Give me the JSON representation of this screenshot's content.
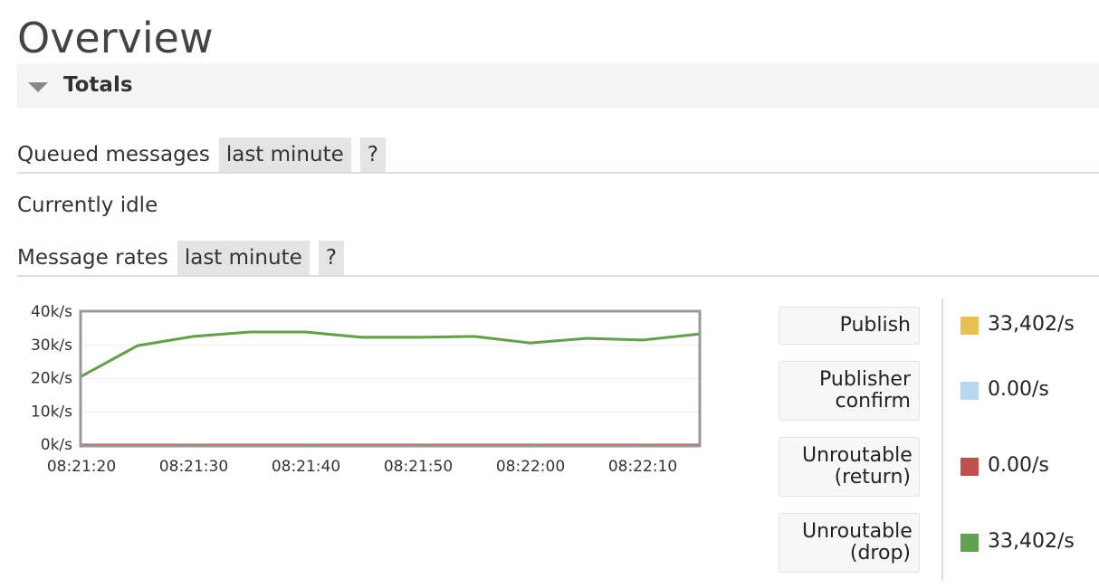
{
  "header": {
    "title": "Overview"
  },
  "totals": {
    "label": "Totals"
  },
  "queued": {
    "label": "Queued messages",
    "range": "last minute",
    "help": "?"
  },
  "idle": "Currently idle",
  "rates": {
    "label": "Message rates",
    "range": "last minute",
    "help": "?"
  },
  "chart_data": {
    "type": "line",
    "x": [
      "08:21:20",
      "08:21:25",
      "08:21:30",
      "08:21:35",
      "08:21:40",
      "08:21:45",
      "08:21:50",
      "08:21:55",
      "08:22:00",
      "08:22:05",
      "08:22:10",
      "08:22:15"
    ],
    "xlim": [
      "08:21:20",
      "08:22:15"
    ],
    "xticks": [
      "08:21:20",
      "08:21:30",
      "08:21:40",
      "08:21:50",
      "08:22:00",
      "08:22:10"
    ],
    "ylim": [
      0,
      40000
    ],
    "yticks": [
      {
        "value": 0,
        "label": "0k/s"
      },
      {
        "value": 10000,
        "label": "10k/s"
      },
      {
        "value": 20000,
        "label": "20k/s"
      },
      {
        "value": 30000,
        "label": "30k/s"
      },
      {
        "value": 40000,
        "label": "40k/s"
      }
    ],
    "grid": true,
    "series": [
      {
        "name": "Publish",
        "color": "#e6c14f",
        "rate": 33402,
        "rate_label": "33,402/s",
        "values": [
          20700,
          29900,
          32700,
          34000,
          34000,
          32400,
          32400,
          32700,
          30700,
          32100,
          31600,
          33402
        ]
      },
      {
        "name": "Publisher confirm",
        "color": "#b8d8f2",
        "rate": 0,
        "rate_label": "0.00/s",
        "values": [
          0,
          0,
          0,
          0,
          0,
          0,
          0,
          0,
          0,
          0,
          0,
          0
        ]
      },
      {
        "name": "Unroutable (return)",
        "color": "#c0504d",
        "rate": 0,
        "rate_label": "0.00/s",
        "values": [
          0,
          0,
          0,
          0,
          0,
          0,
          0,
          0,
          0,
          0,
          0,
          0
        ]
      },
      {
        "name": "Unroutable (drop)",
        "color": "#62a052",
        "rate": 33402,
        "rate_label": "33,402/s",
        "values": [
          20700,
          29900,
          32700,
          34000,
          34000,
          32400,
          32400,
          32700,
          30700,
          32100,
          31600,
          33402
        ]
      }
    ]
  }
}
